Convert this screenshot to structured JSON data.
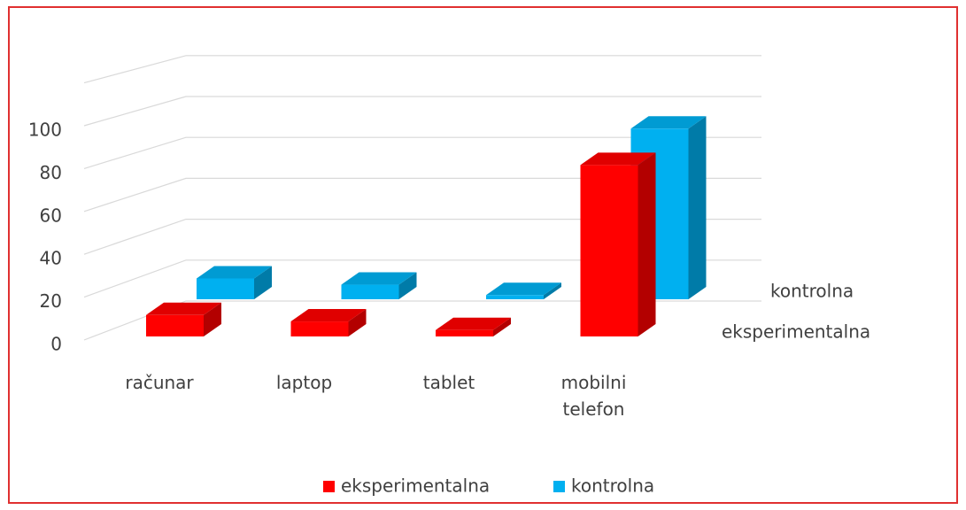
{
  "chart_data": {
    "type": "bar3d",
    "categories": [
      "računar",
      "laptop",
      "tablet",
      "mobilni telefon"
    ],
    "series": [
      {
        "name": "eksperimentalna",
        "color": "#ff0000",
        "values": [
          10,
          7,
          3,
          80
        ]
      },
      {
        "name": "kontrolna",
        "color": "#00b0f0",
        "values": [
          10,
          7,
          2,
          82
        ]
      }
    ],
    "ylim": [
      0,
      120
    ],
    "yticks": [
      0,
      20,
      40,
      60,
      80,
      100
    ],
    "grid": true,
    "legend": "bottom"
  }
}
